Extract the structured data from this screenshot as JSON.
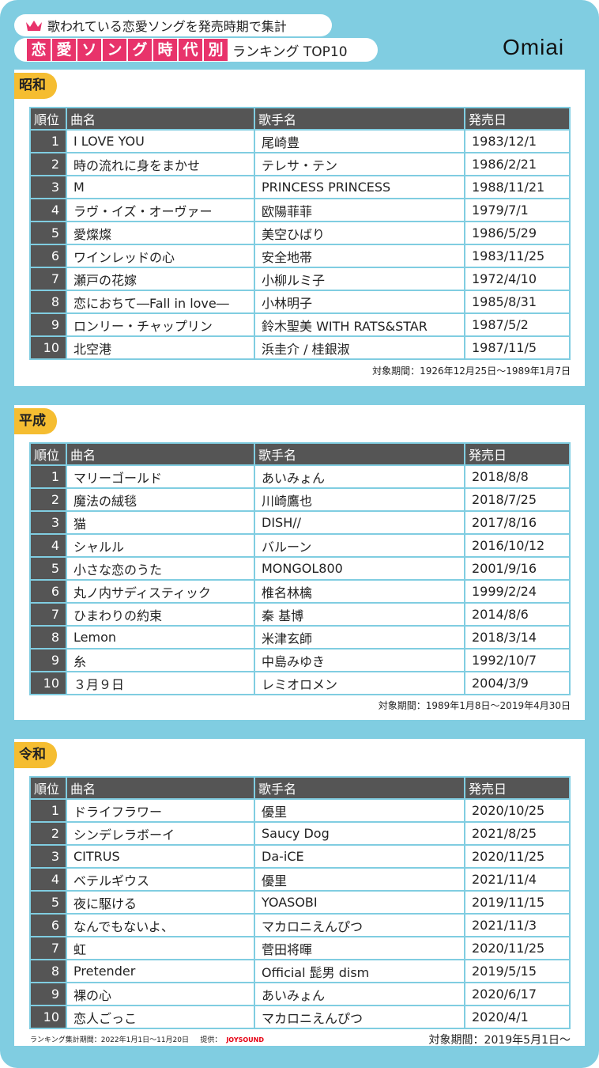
{
  "header": {
    "line1": "歌われている恋愛ソングを発売時期で集計",
    "title_chars": [
      "恋",
      "愛",
      "ソ",
      "ン",
      "グ",
      "時",
      "代",
      "別"
    ],
    "subtitle": "ランキング TOP10",
    "logo": "Omiai"
  },
  "columns": {
    "rank": "順位",
    "song": "曲名",
    "artist": "歌手名",
    "date": "発売日"
  },
  "sections": [
    {
      "era": "昭和",
      "note": "対象期間：1926年12月25日～1989年1月7日",
      "rows": [
        [
          "1",
          "I LOVE YOU",
          "尾崎豊",
          "1983/12/1"
        ],
        [
          "2",
          "時の流れに身をまかせ",
          "テレサ・テン",
          "1986/2/21"
        ],
        [
          "3",
          "M",
          "PRINCESS PRINCESS",
          "1988/11/21"
        ],
        [
          "4",
          "ラヴ・イズ・オーヴァー",
          "欧陽菲菲",
          "1979/7/1"
        ],
        [
          "5",
          "愛燦燦",
          "美空ひばり",
          "1986/5/29"
        ],
        [
          "6",
          "ワインレッドの心",
          "安全地帯",
          "1983/11/25"
        ],
        [
          "7",
          "瀬戸の花嫁",
          "小柳ルミ子",
          "1972/4/10"
        ],
        [
          "8",
          "恋におちて―Fall in love―",
          "小林明子",
          "1985/8/31"
        ],
        [
          "9",
          "ロンリー・チャップリン",
          "鈴木聖美 WITH RATS&STAR",
          "1987/5/2"
        ],
        [
          "10",
          "北空港",
          "浜圭介 / 桂銀淑",
          "1987/11/5"
        ]
      ]
    },
    {
      "era": "平成",
      "note": "対象期間：1989年1月8日～2019年4月30日",
      "rows": [
        [
          "1",
          "マリーゴールド",
          "あいみょん",
          "2018/8/8"
        ],
        [
          "2",
          "魔法の絨毯",
          "川崎鷹也",
          "2018/7/25"
        ],
        [
          "3",
          "猫",
          "DISH//",
          "2017/8/16"
        ],
        [
          "4",
          "シャルル",
          "バルーン",
          "2016/10/12"
        ],
        [
          "5",
          "小さな恋のうた",
          "MONGOL800",
          "2001/9/16"
        ],
        [
          "6",
          "丸ノ内サディスティック",
          "椎名林檎",
          "1999/2/24"
        ],
        [
          "7",
          "ひまわりの約束",
          "秦 基博",
          "2014/8/6"
        ],
        [
          "8",
          "Lemon",
          "米津玄師",
          "2018/3/14"
        ],
        [
          "9",
          "糸",
          "中島みゆき",
          "1992/10/7"
        ],
        [
          "10",
          "３月９日",
          "レミオロメン",
          "2004/3/9"
        ]
      ]
    },
    {
      "era": "令和",
      "note": "対象期間：2019年5月1日～",
      "rows": [
        [
          "1",
          "ドライフラワー",
          "優里",
          "2020/10/25"
        ],
        [
          "2",
          "シンデレラボーイ",
          "Saucy Dog",
          "2021/8/25"
        ],
        [
          "3",
          "CITRUS",
          "Da-iCE",
          "2020/11/25"
        ],
        [
          "4",
          "ベテルギウス",
          "優里",
          "2021/11/4"
        ],
        [
          "5",
          "夜に駆ける",
          "YOASOBI",
          "2019/11/15"
        ],
        [
          "6",
          "なんでもないよ、",
          "マカロニえんぴつ",
          "2021/11/3"
        ],
        [
          "7",
          "虹",
          "菅田将暉",
          "2020/11/25"
        ],
        [
          "8",
          "Pretender",
          "Official 髭男 dism",
          "2019/5/15"
        ],
        [
          "9",
          "裸の心",
          "あいみょん",
          "2020/6/17"
        ],
        [
          "10",
          "恋人ごっこ",
          "マカロニえんぴつ",
          "2020/4/1"
        ]
      ]
    }
  ],
  "footer": {
    "period": "ランキング集計期間：2022年1月1日～11月20日",
    "provider_label": "提供：",
    "provider": "JOYSOUND"
  },
  "colors": {
    "background": "#80cde1",
    "accent": "#e8336b",
    "tag": "#f5bd31",
    "header_row": "#555555"
  }
}
